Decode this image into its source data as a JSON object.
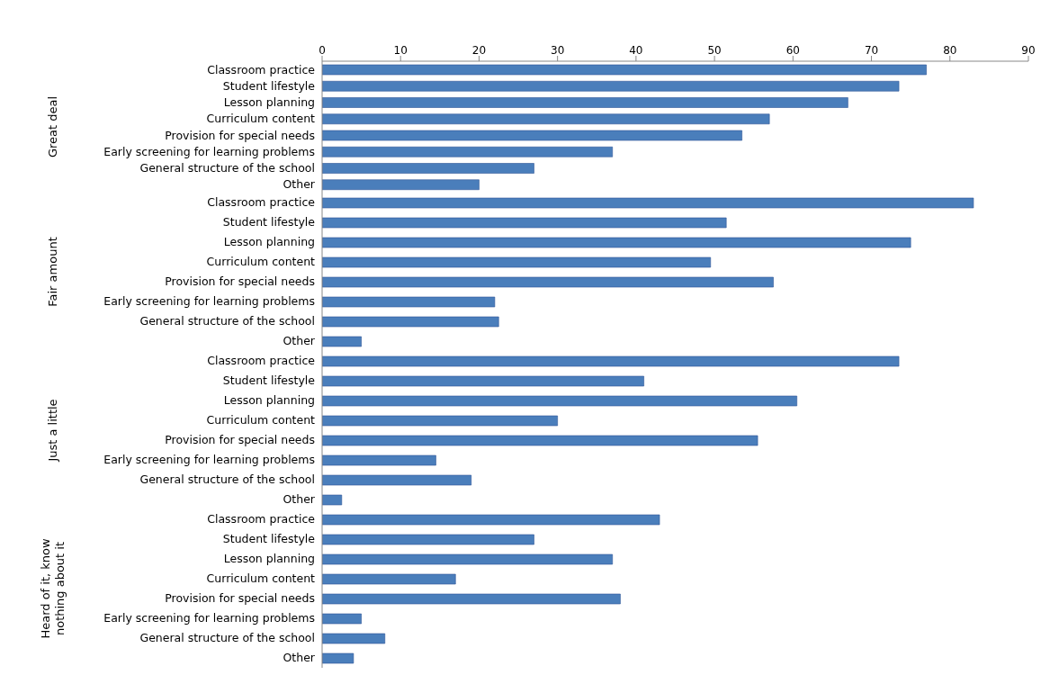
{
  "chart_data": [
    {
      "type": "bar",
      "orientation": "horizontal",
      "ylabel": "Great deal",
      "categories": [
        "Classroom practice",
        "Student lifestyle",
        "Lesson planning",
        "Curriculum content",
        "Provision for special needs",
        "Early screening for learning problems",
        "General structure of the school",
        "Other"
      ],
      "values": [
        77,
        73.5,
        67,
        57,
        53.5,
        37,
        27,
        20
      ],
      "color": "#4a7ebb",
      "xlim": [
        0,
        90
      ],
      "xticks": [
        0,
        10,
        20,
        30,
        40,
        50,
        60,
        70,
        80,
        90
      ],
      "grid": false
    },
    {
      "type": "bar",
      "orientation": "horizontal",
      "ylabel": "Fair amount",
      "categories": [
        "Classroom practice",
        "Student lifestyle",
        "Lesson planning",
        "Curriculum content",
        "Provision for special needs",
        "Early screening for learning problems",
        "General structure of the school",
        "Other"
      ],
      "values": [
        83,
        51.5,
        75,
        49.5,
        57.5,
        22,
        22.5,
        5
      ],
      "color": "#4a7ebb",
      "xlim": [
        0,
        90
      ],
      "xticks": [
        0,
        10,
        20,
        30,
        40,
        50,
        60,
        70,
        80,
        90
      ],
      "grid": false,
      "tick_labels": "y"
    },
    {
      "type": "bar",
      "orientation": "horizontal",
      "ylabel": "Just a little",
      "categories": [
        "Classroom practice",
        "Student lifestyle",
        "Lesson planning",
        "Curriculum content",
        "Provision for special needs",
        "Early screening for learning problems",
        "General structure of the school",
        "Other"
      ],
      "values": [
        73.5,
        41,
        60.5,
        30,
        55.5,
        14.5,
        19,
        2.5
      ],
      "color": "#4a7ebb",
      "xlim": [
        0,
        90
      ],
      "xticks": [
        0,
        10,
        20,
        30,
        40,
        50,
        60,
        70,
        80,
        90
      ],
      "grid": false,
      "tick_labels": "y"
    },
    {
      "type": "bar",
      "orientation": "horizontal",
      "ylabel": "Heard of it, know nothing about it",
      "categories": [
        "Classroom practice",
        "Student lifestyle",
        "Lesson planning",
        "Curriculum content",
        "Provision for special needs",
        "Early screening for learning problems",
        "General structure of the school",
        "Other"
      ],
      "values": [
        43,
        27,
        37,
        17,
        38,
        5,
        8,
        4
      ],
      "color": "#4a7ebb",
      "xlim": [
        0,
        90
      ],
      "xticks": [
        0,
        10,
        20,
        30,
        40,
        50,
        60,
        70,
        80,
        90
      ],
      "grid": false,
      "tick_labels": "y"
    }
  ]
}
